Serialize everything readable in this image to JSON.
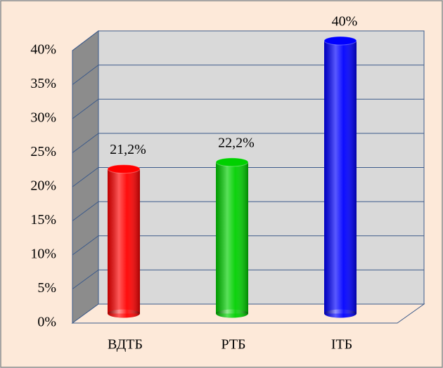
{
  "chart_data": {
    "type": "bar",
    "categories": [
      "ВДТБ",
      "РТБ",
      "ІТБ"
    ],
    "series": [
      {
        "values": [
          21.2,
          22.2,
          40
        ],
        "value_labels": [
          "21,2%",
          "22,2%",
          "40%"
        ],
        "colors": [
          "#ff0000",
          "#00d000",
          "#0000ff"
        ]
      }
    ],
    "ylim": [
      0,
      40
    ],
    "yticks": [
      {
        "value": 0,
        "label": "0%"
      },
      {
        "value": 5,
        "label": "5%"
      },
      {
        "value": 10,
        "label": "10%"
      },
      {
        "value": 15,
        "label": "15%"
      },
      {
        "value": 20,
        "label": "20%"
      },
      {
        "value": 25,
        "label": "25%"
      },
      {
        "value": 30,
        "label": "30%"
      },
      {
        "value": 35,
        "label": "35%"
      },
      {
        "value": 40,
        "label": "40%"
      }
    ],
    "grid": true
  }
}
